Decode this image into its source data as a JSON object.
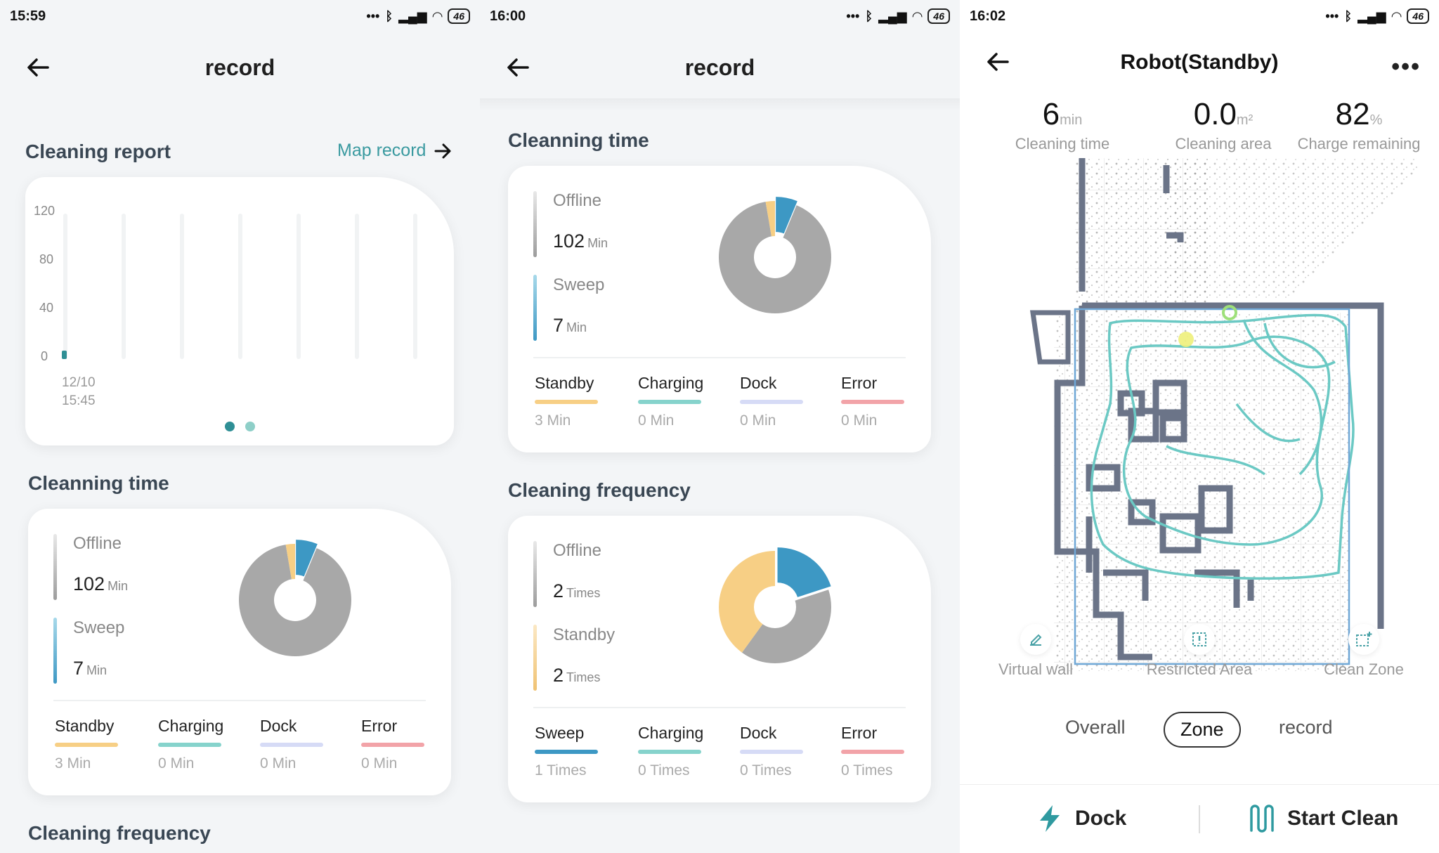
{
  "panel1": {
    "status": {
      "time": "15:59",
      "battery": "46"
    },
    "title": "record",
    "report": {
      "title": "Cleaning report",
      "map_link": "Map record",
      "yticks": [
        "120",
        "80",
        "40",
        "0"
      ],
      "date": "12/10",
      "time": "15:45"
    },
    "cleaning_time": {
      "title": "Cleanning time",
      "offline_label": "Offline",
      "offline_value": "102",
      "offline_unit": "Min",
      "sweep_label": "Sweep",
      "sweep_value": "7",
      "sweep_unit": "Min",
      "stats": [
        {
          "name": "Standby",
          "value": "3 Min",
          "color": "#f7cf85"
        },
        {
          "name": "Charging",
          "value": "0 Min",
          "color": "#86d3cc"
        },
        {
          "name": "Dock",
          "value": "0 Min",
          "color": "#d6dbf6"
        },
        {
          "name": "Error",
          "value": "0 Min",
          "color": "#f2a3a8"
        }
      ]
    },
    "frequency_title": "Cleaning frequency"
  },
  "panel2": {
    "status": {
      "time": "16:00",
      "battery": "46"
    },
    "title": "record",
    "cleaning_time": {
      "title": "Cleanning time",
      "offline_label": "Offline",
      "offline_value": "102",
      "offline_unit": "Min",
      "sweep_label": "Sweep",
      "sweep_value": "7",
      "sweep_unit": "Min",
      "stats": [
        {
          "name": "Standby",
          "value": "3 Min"
        },
        {
          "name": "Charging",
          "value": "0 Min"
        },
        {
          "name": "Dock",
          "value": "0 Min"
        },
        {
          "name": "Error",
          "value": "0 Min"
        }
      ]
    },
    "frequency": {
      "title": "Cleaning frequency",
      "offline_label": "Offline",
      "offline_value": "2",
      "offline_unit": "Times",
      "standby_label": "Standby",
      "standby_value": "2",
      "standby_unit": "Times",
      "stats": [
        {
          "name": "Sweep",
          "value": "1 Times"
        },
        {
          "name": "Charging",
          "value": "0 Times"
        },
        {
          "name": "Dock",
          "value": "0 Times"
        },
        {
          "name": "Error",
          "value": "0 Times"
        }
      ]
    }
  },
  "panel3": {
    "status": {
      "time": "16:02",
      "battery": "46"
    },
    "title": "Robot(Standby)",
    "metrics": [
      {
        "value": "6",
        "unit": "min",
        "label": "Cleaning time"
      },
      {
        "value": "0.0",
        "unit": "m²",
        "label": "Cleaning area"
      },
      {
        "value": "82",
        "unit": "%",
        "label": "Charge remaining"
      }
    ],
    "tools": [
      "Virtual wall",
      "Restricted Area",
      "Clean Zone"
    ],
    "tabs": [
      "Overall",
      "Zone",
      "record"
    ],
    "actions": {
      "dock": "Dock",
      "start": "Start Clean"
    }
  },
  "chart_data": [
    {
      "type": "bar",
      "categories": [
        "12/10 15:45"
      ],
      "values": [
        7
      ],
      "ylim": [
        0,
        120
      ],
      "yticks": [
        0,
        40,
        80,
        120
      ]
    },
    {
      "type": "pie",
      "title": "Cleanning time",
      "labels": [
        "Offline",
        "Sweep",
        "Standby",
        "Charging",
        "Dock",
        "Error"
      ],
      "values": [
        102,
        7,
        3,
        0,
        0,
        0
      ],
      "colors": {
        "Offline": "#a8a8a8",
        "Sweep": "#3d98c4",
        "Standby": "#f7cf85"
      }
    },
    {
      "type": "pie",
      "title": "Cleaning frequency",
      "labels": [
        "Offline",
        "Standby",
        "Sweep",
        "Charging",
        "Dock",
        "Error"
      ],
      "values": [
        2,
        2,
        1,
        0,
        0,
        0
      ],
      "colors": {
        "Offline": "#a8a8a8",
        "Standby": "#f7cf85",
        "Sweep": "#3d98c4"
      }
    }
  ]
}
